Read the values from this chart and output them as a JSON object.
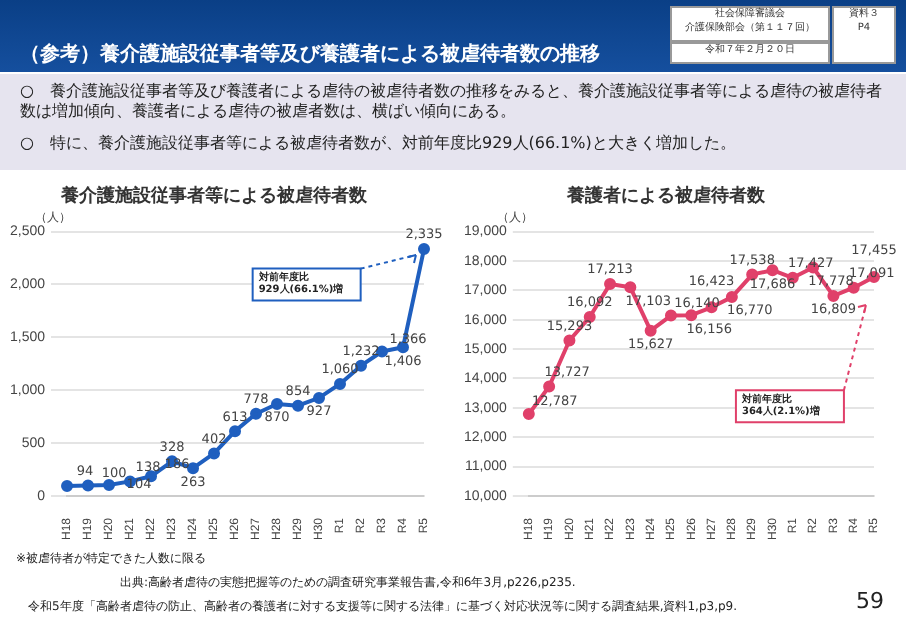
{
  "chart_data": [
    {
      "type": "line",
      "title": "養介護施設従事者等による被虐待者数",
      "ylabel": "（人）",
      "categories": [
        "H18",
        "H19",
        "H20",
        "H21",
        "H22",
        "H23",
        "H24",
        "H25",
        "H26",
        "H27",
        "H28",
        "H29",
        "H30",
        "R1",
        "R2",
        "R3",
        "R4",
        "R5"
      ],
      "series": [
        {
          "color": "#1f5fbf",
          "values": [
            94,
            100,
            104,
            138,
            186,
            328,
            263,
            402,
            613,
            778,
            870,
            854,
            927,
            1060,
            1232,
            1366,
            1406,
            2335
          ],
          "value_labels": [
            "94",
            "100",
            "104",
            "138",
            "186",
            "328",
            "263",
            "402",
            "613",
            "778",
            "870",
            "854",
            "927",
            "1,060",
            "1,232",
            "1,366",
            "1,406",
            "2,335"
          ]
        }
      ],
      "ylim": [
        0,
        2500
      ],
      "yticks": [
        0,
        500,
        {
          "value": 1000,
          "label": "1,000"
        },
        {
          "value": 1500,
          "label": "1,500"
        },
        {
          "value": 2000,
          "label": "2,000"
        },
        {
          "value": 2500,
          "label": "2,500"
        }
      ],
      "grid": "y",
      "marker": "circle",
      "legend": false,
      "annotations": [
        "（参考）養介護施設従事者等及び養護者による被虐待者数の推移",
        "社会保障審議会",
        "介護保険部会（第１１７回）",
        "令和７年２月２０日",
        "資料３",
        "P4",
        "○　養介護施設従事者等及び養護者による虐待の被虐待者数の推移をみると、養介護施設従事者等による虐待の被虐待者数は増加傾向、養護者による虐待の被虐者数は、横ばい傾向にある。",
        "○　特に、養介護施設従事者等による被虐待者数が、対前年度比929人(66.1%)と大きく増加した。",
        "※被虐待者が特定できた人数に限る",
        "出典:高齢者虐待の実態把握等のための調査研究事業報告書,令和6年3月,p226,p235.",
        "令和5年度「高齢者虐待の防止、高齢者の養護者に対する支援等に関する法律」に基づく対応状況等に関する調査結果,資料1,p3,p9.",
        "59",
        "対前年度比\n929人(66.1%)増"
      ]
    },
    {
      "type": "line",
      "title": "養護者による被虐待者数",
      "ylabel": "（人）",
      "categories": [
        "H18",
        "H19",
        "H20",
        "H21",
        "H22",
        "H23",
        "H24",
        "H25",
        "H26",
        "H27",
        "H28",
        "H29",
        "H30",
        "R1",
        "R2",
        "R3",
        "R4",
        "R5"
      ],
      "series": [
        {
          "color": "#e0406a",
          "values": [
            12787,
            13727,
            15293,
            16092,
            17213,
            17103,
            15627,
            16140,
            16156,
            16423,
            16770,
            17538,
            17686,
            17427,
            17778,
            16809,
            17091,
            17455
          ],
          "value_labels": [
            "12,787",
            "13,727",
            "15,293",
            "16,092",
            "17,213",
            "17,103",
            "15,627",
            "16,140",
            "16,156",
            "16,423",
            "16,770",
            "17,538",
            "17,686",
            "17,427",
            "17,778",
            "16,809",
            "17,091",
            "17,455"
          ]
        }
      ],
      "ylim": [
        10000,
        19000
      ],
      "yticks": [
        {
          "value": 10000,
          "label": "10,000"
        },
        {
          "value": 11000,
          "label": "11,000"
        },
        {
          "value": 12000,
          "label": "12,000"
        },
        {
          "value": 13000,
          "label": "13,000"
        },
        {
          "value": 14000,
          "label": "14,000"
        },
        {
          "value": 15000,
          "label": "15,000"
        },
        {
          "value": 16000,
          "label": "16,000"
        },
        {
          "value": 17000,
          "label": "17,000"
        },
        {
          "value": 18000,
          "label": "18,000"
        },
        {
          "value": 19000,
          "label": "19,000"
        }
      ],
      "grid": "y",
      "marker": "circle",
      "legend": false,
      "annotations": [
        "対前年度比\n364人(2.1%)増"
      ]
    }
  ]
}
